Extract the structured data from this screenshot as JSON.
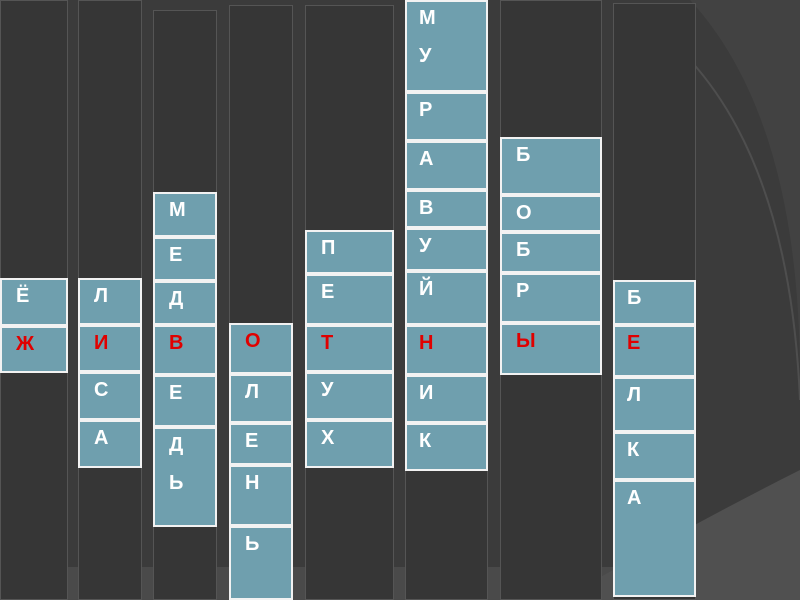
{
  "colors": {
    "background": "#3b3b3b",
    "cell": "#6f9fae",
    "letter": "#ffffff",
    "highlight": "#e00000"
  },
  "words": [
    {
      "cells": [
        {
          "letters": [
            "Ё"
          ],
          "red": false
        },
        {
          "letters": [
            "Ж"
          ],
          "red": true
        }
      ]
    },
    {
      "cells": [
        {
          "letters": [
            "Л"
          ],
          "red": false
        },
        {
          "letters": [
            "И"
          ],
          "red": true
        },
        {
          "letters": [
            "С"
          ],
          "red": false
        },
        {
          "letters": [
            "А"
          ],
          "red": false
        }
      ]
    },
    {
      "cells": [
        {
          "letters": [
            "М"
          ],
          "red": false
        },
        {
          "letters": [
            "Е"
          ],
          "red": false
        },
        {
          "letters": [
            "Д"
          ],
          "red": false
        },
        {
          "letters": [
            "В"
          ],
          "red": true
        },
        {
          "letters": [
            "Е"
          ],
          "red": false
        },
        {
          "letters": [
            "Д",
            "Ь"
          ],
          "red": false
        }
      ]
    },
    {
      "cells": [
        {
          "letters": [
            "О"
          ],
          "red": true
        },
        {
          "letters": [
            "Л"
          ],
          "red": false
        },
        {
          "letters": [
            "Е"
          ],
          "red": false
        },
        {
          "letters": [
            "Н"
          ],
          "red": false
        },
        {
          "letters": [
            "Ь"
          ],
          "red": false
        }
      ]
    },
    {
      "cells": [
        {
          "letters": [
            "П"
          ],
          "red": false
        },
        {
          "letters": [
            "Е"
          ],
          "red": false
        },
        {
          "letters": [
            "Т"
          ],
          "red": true
        },
        {
          "letters": [
            "У"
          ],
          "red": false
        },
        {
          "letters": [
            "Х"
          ],
          "red": false
        }
      ]
    },
    {
      "cells": [
        {
          "letters": [
            "М",
            "У"
          ],
          "red": false
        },
        {
          "letters": [
            "Р"
          ],
          "red": false
        },
        {
          "letters": [
            "А"
          ],
          "red": false
        },
        {
          "letters": [
            "В"
          ],
          "red": false
        },
        {
          "letters": [
            "У"
          ],
          "red": false
        },
        {
          "letters": [
            "Й"
          ],
          "red": false
        },
        {
          "letters": [
            "Н"
          ],
          "red": true
        },
        {
          "letters": [
            "И"
          ],
          "red": false
        },
        {
          "letters": [
            "К"
          ],
          "red": false
        }
      ]
    },
    {
      "cells": [
        {
          "letters": [
            "Б"
          ],
          "red": false
        },
        {
          "letters": [
            "О"
          ],
          "red": false
        },
        {
          "letters": [
            "Б"
          ],
          "red": false
        },
        {
          "letters": [
            "Р"
          ],
          "red": false
        },
        {
          "letters": [
            "Ы"
          ],
          "red": true
        }
      ]
    },
    {
      "cells": [
        {
          "letters": [
            "Б"
          ],
          "red": false
        },
        {
          "letters": [
            "Е"
          ],
          "red": true
        },
        {
          "letters": [
            "Л"
          ],
          "red": false
        },
        {
          "letters": [
            "К"
          ],
          "red": false
        },
        {
          "letters": [
            "А"
          ],
          "red": false
        }
      ]
    }
  ]
}
